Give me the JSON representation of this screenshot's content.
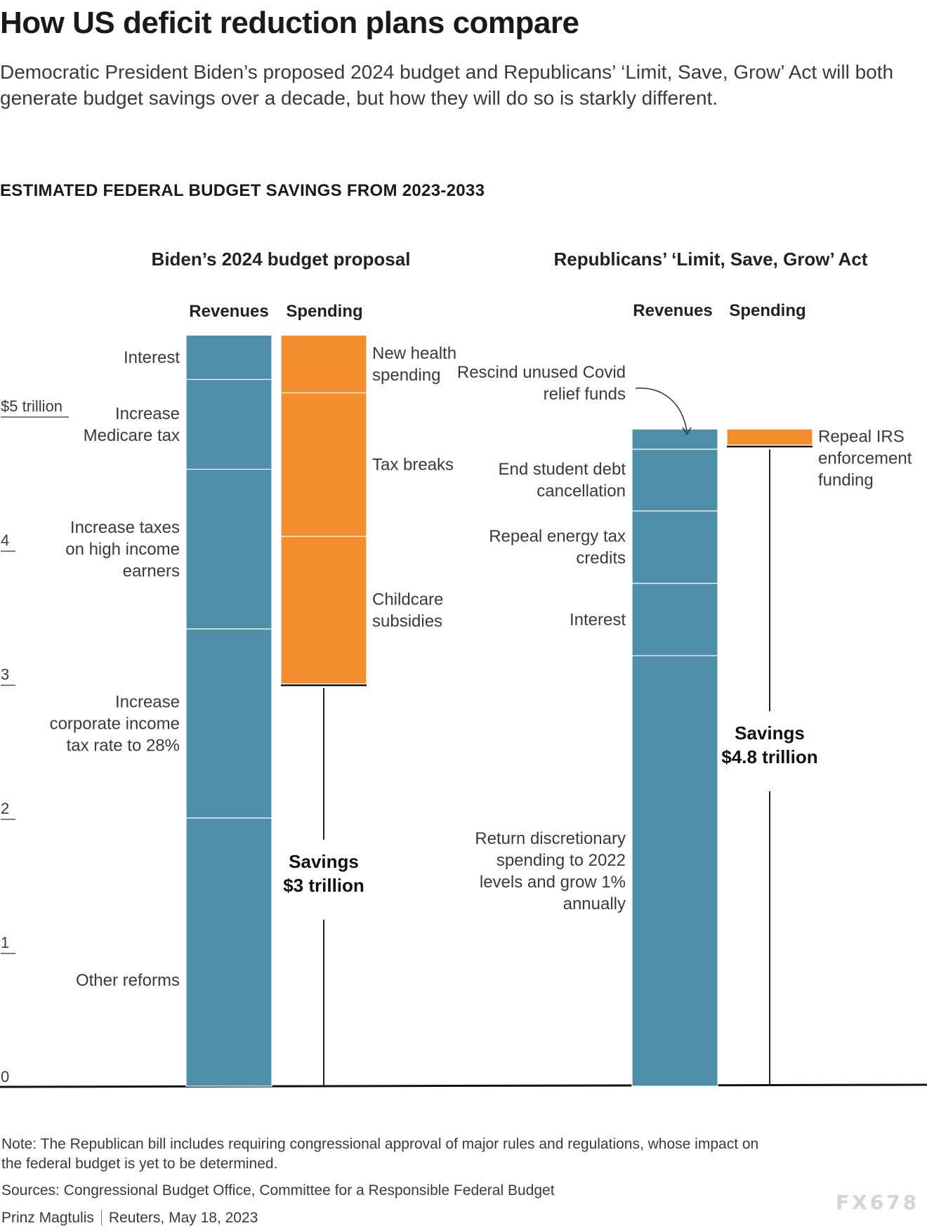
{
  "header": {
    "title": "How US deficit reduction plans compare",
    "subtitle": "Democratic President Biden’s proposed 2024 budget and Republicans’ ‘Limit, Save, Grow’ Act will both generate budget savings over a decade, but how they will do so is starkly different.",
    "section": "ESTIMATED FEDERAL BUDGET SAVINGS FROM 2023-2033"
  },
  "chart_data": {
    "type": "bar",
    "ylim": [
      0,
      5.6
    ],
    "ticks": [
      {
        "value": 0,
        "label": "0"
      },
      {
        "value": 1,
        "label": "1"
      },
      {
        "value": 2,
        "label": "2"
      },
      {
        "value": 3,
        "label": "3"
      },
      {
        "value": 4,
        "label": "4"
      },
      {
        "value": 5,
        "label": "$5 trillion"
      }
    ],
    "colors": {
      "revenues": "#4e8ea8",
      "spending": "#f48d2d"
    },
    "column_labels": {
      "revenues": "Revenues",
      "spending": "Spending"
    },
    "plans": [
      {
        "name": "Biden’s 2024 budget proposal",
        "revenues": [
          {
            "label": "Other reforms",
            "value": 2.0
          },
          {
            "label": "Increase corporate income tax rate to 28%",
            "value": 1.41
          },
          {
            "label": "Increase taxes on high income earners",
            "value": 1.19
          },
          {
            "label": "Increase Medicare tax",
            "value": 0.67
          },
          {
            "label": "Interest",
            "value": 0.33
          }
        ],
        "spending": [
          {
            "label": "Childcare subsidies",
            "value": 1.1
          },
          {
            "label": "Tax breaks",
            "value": 1.07
          },
          {
            "label": "New health spending",
            "value": 0.43
          }
        ],
        "savings_label": "Savings",
        "savings_value": "$3 trillion",
        "savings": 3.0
      },
      {
        "name": "Republicans’ ‘Limit, Save, Grow’ Act",
        "revenues": [
          {
            "label": "Return discretionary spending to 2022 levels and grow 1% annually",
            "value": 3.21
          },
          {
            "label": "Interest",
            "value": 0.54
          },
          {
            "label": "Repeal energy tax credits",
            "value": 0.54
          },
          {
            "label": "End student debt cancellation",
            "value": 0.46
          },
          {
            "label": "Rescind unused Covid relief funds",
            "value": 0.15
          }
        ],
        "spending": [
          {
            "label": "Repeal IRS enforcement funding",
            "value": 0.12
          }
        ],
        "savings_label": "Savings",
        "savings_value": "$4.8 trillion",
        "savings": 4.78
      }
    ]
  },
  "footer": {
    "note": "Note: The Republican bill includes requiring congressional approval of major rules and regulations, whose impact on the federal budget is yet to be determined.",
    "sources": "Sources: Congressional Budget Office, Committee for a Responsible Federal Budget",
    "author": "Prinz Magtulis",
    "publisher": "Reuters, May 18, 2023"
  },
  "watermark": "FX678"
}
